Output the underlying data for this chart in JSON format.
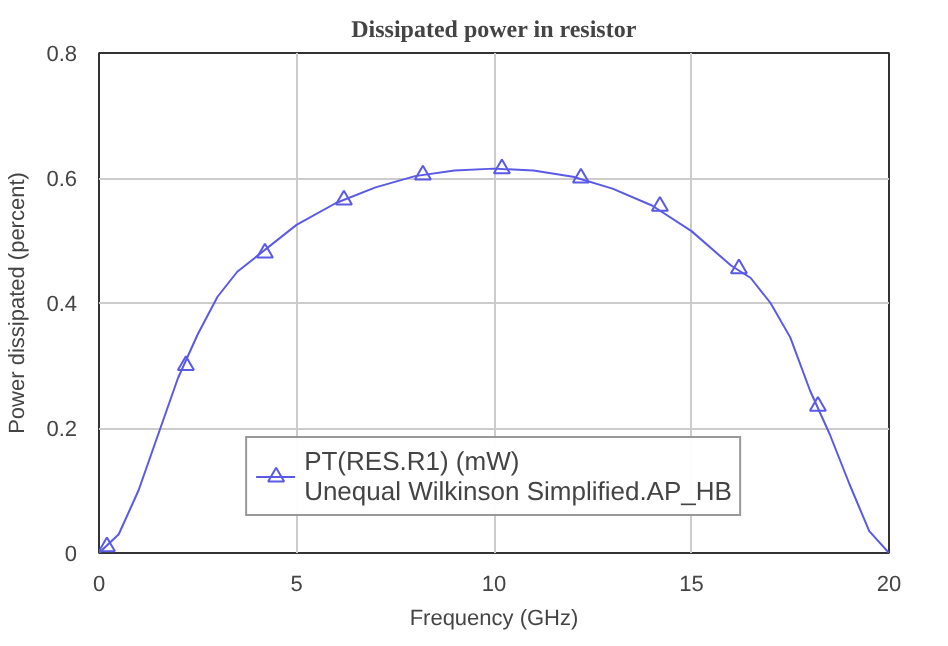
{
  "chart_data": {
    "type": "line",
    "title": "Dissipated power in resistor",
    "xlabel": "Frequency (GHz)",
    "ylabel": "Power dissipated (percent)",
    "xlim": [
      0,
      20
    ],
    "xticks": [
      0,
      5,
      10,
      15,
      20
    ],
    "ylim": [
      0,
      0.8
    ],
    "yticks": [
      0,
      0.2,
      0.4,
      0.6,
      0.8
    ],
    "grid": true,
    "legend": "bottom",
    "series": [
      {
        "color": "#5a5ae6",
        "marker": "none",
        "x": [
          0,
          0.5,
          1,
          1.5,
          2,
          2.5,
          3,
          3.5,
          4,
          5,
          6,
          7,
          8,
          9,
          10,
          11,
          12,
          13,
          14,
          15,
          16,
          16.5,
          17,
          17.5,
          18,
          18.5,
          19,
          19.5,
          20
        ],
        "values": [
          0,
          0.03,
          0.1,
          0.19,
          0.28,
          0.35,
          0.41,
          0.45,
          0.475,
          0.525,
          0.56,
          0.585,
          0.603,
          0.612,
          0.615,
          0.612,
          0.602,
          0.583,
          0.556,
          0.515,
          0.46,
          0.44,
          0.4,
          0.345,
          0.26,
          0.19,
          0.11,
          0.035,
          0
        ]
      },
      {
        "type": "scatter",
        "name": "PT(RES.R1) (mW)\nUnequal Wilkinson Simplified.AP_HB",
        "color": "#5a5ae6",
        "marker": "triangle",
        "x": [
          0.2,
          2.2,
          4.2,
          6.2,
          8.2,
          10.2,
          12.2,
          14.2,
          16.2,
          18.2
        ],
        "values": [
          0.01,
          0.3,
          0.48,
          0.565,
          0.605,
          0.615,
          0.6,
          0.555,
          0.455,
          0.235
        ]
      }
    ]
  }
}
